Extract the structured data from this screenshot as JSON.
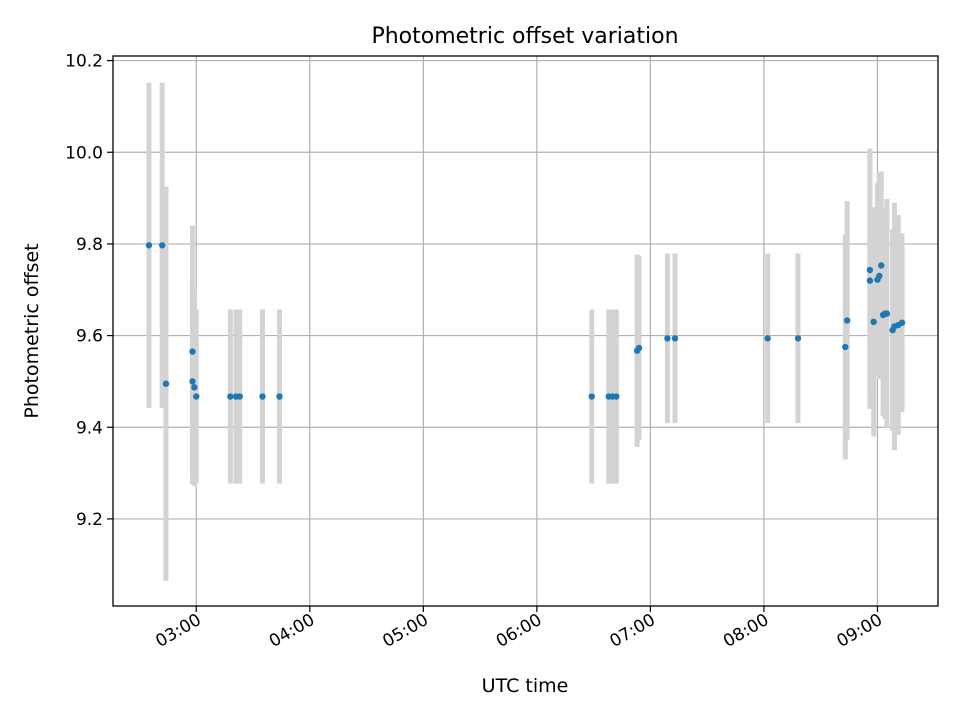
{
  "chart_data": {
    "type": "scatter",
    "title": "Photometric offset variation",
    "xlabel": "UTC time",
    "ylabel": "Photometric offset",
    "x_ticks": [
      "03:00",
      "04:00",
      "05:00",
      "06:00",
      "07:00",
      "08:00",
      "09:00"
    ],
    "y_ticks": [
      "9.2",
      "9.4",
      "9.6",
      "9.8",
      "10.0",
      "10.2"
    ],
    "xlim": [
      "02:16",
      "09:32"
    ],
    "ylim": [
      9.01,
      10.21
    ],
    "grid": true,
    "marker_color": "#1f77b4",
    "errorbar_color": "#d3d3d3",
    "series": [
      {
        "points": [
          {
            "t": "02:35",
            "y": 9.797,
            "err": 0.355
          },
          {
            "t": "02:42",
            "y": 9.797,
            "err": 0.355
          },
          {
            "t": "02:44",
            "y": 9.495,
            "err": 0.43
          },
          {
            "t": "02:58",
            "y": 9.565,
            "err": 0.275
          },
          {
            "t": "02:58",
            "y": 9.5,
            "err": 0.225
          },
          {
            "t": "02:59",
            "y": 9.487,
            "err": 0.215
          },
          {
            "t": "03:00",
            "y": 9.467,
            "err": 0.19
          },
          {
            "t": "03:18",
            "y": 9.467,
            "err": 0.19
          },
          {
            "t": "03:21",
            "y": 9.467,
            "err": 0.19
          },
          {
            "t": "03:23",
            "y": 9.467,
            "err": 0.19
          },
          {
            "t": "03:35",
            "y": 9.467,
            "err": 0.19
          },
          {
            "t": "03:44",
            "y": 9.467,
            "err": 0.19
          },
          {
            "t": "06:29",
            "y": 9.467,
            "err": 0.19
          },
          {
            "t": "06:38",
            "y": 9.467,
            "err": 0.19
          },
          {
            "t": "06:40",
            "y": 9.467,
            "err": 0.19
          },
          {
            "t": "06:42",
            "y": 9.467,
            "err": 0.19
          },
          {
            "t": "06:53",
            "y": 9.567,
            "err": 0.21
          },
          {
            "t": "06:54",
            "y": 9.573,
            "err": 0.2
          },
          {
            "t": "07:09",
            "y": 9.594,
            "err": 0.185
          },
          {
            "t": "07:13",
            "y": 9.594,
            "err": 0.185
          },
          {
            "t": "08:02",
            "y": 9.594,
            "err": 0.185
          },
          {
            "t": "08:18",
            "y": 9.594,
            "err": 0.185
          },
          {
            "t": "08:43",
            "y": 9.575,
            "err": 0.245
          },
          {
            "t": "08:44",
            "y": 9.633,
            "err": 0.26
          },
          {
            "t": "08:56",
            "y": 9.72,
            "err": 0.28
          },
          {
            "t": "08:56",
            "y": 9.743,
            "err": 0.265
          },
          {
            "t": "08:58",
            "y": 9.63,
            "err": 0.25
          },
          {
            "t": "09:00",
            "y": 9.722,
            "err": 0.21
          },
          {
            "t": "09:01",
            "y": 9.73,
            "err": 0.225
          },
          {
            "t": "09:02",
            "y": 9.753,
            "err": 0.205
          },
          {
            "t": "09:03",
            "y": 9.645,
            "err": 0.22
          },
          {
            "t": "09:04",
            "y": 9.648,
            "err": 0.23
          },
          {
            "t": "09:05",
            "y": 9.648,
            "err": 0.25
          },
          {
            "t": "09:08",
            "y": 9.612,
            "err": 0.22
          },
          {
            "t": "09:09",
            "y": 9.62,
            "err": 0.27
          },
          {
            "t": "09:11",
            "y": 9.623,
            "err": 0.24
          },
          {
            "t": "09:13",
            "y": 9.628,
            "err": 0.195
          }
        ]
      }
    ]
  }
}
